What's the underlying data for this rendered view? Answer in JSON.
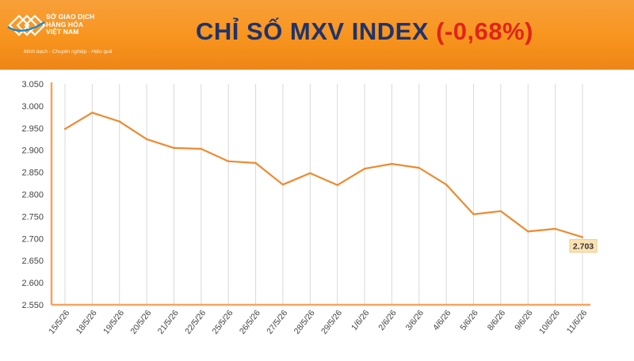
{
  "header": {
    "org_line1": "SỞ GIAO DỊCH",
    "org_line2": "HÀNG HÓA",
    "org_line3": "VIỆT NAM",
    "tagline": "Minh bạch - Chuyên nghiệp - Hiệu quả",
    "title_main": "CHỈ SỐ MXV INDEX",
    "title_change": "(-0,68%)",
    "header_color": "#f7941d",
    "title_color": "#20336b",
    "change_color": "#e0241b"
  },
  "chart_data": {
    "type": "line",
    "categories": [
      "15/5/26",
      "18/5/26",
      "19/5/26",
      "20/5/26",
      "21/5/26",
      "22/5/26",
      "25/5/26",
      "26/5/26",
      "27/5/26",
      "28/5/26",
      "29/5/26",
      "1/6/26",
      "2/6/26",
      "3/6/26",
      "4/6/26",
      "5/6/26",
      "8/6/26",
      "9/6/26",
      "10/6/26",
      "11/6/26"
    ],
    "values": [
      2948,
      2985,
      2965,
      2925,
      2905,
      2903,
      2875,
      2871,
      2822,
      2848,
      2821,
      2858,
      2869,
      2860,
      2822,
      2755,
      2762,
      2716,
      2722,
      2703
    ],
    "ylim": [
      2550,
      3050
    ],
    "yticks": [
      "2.550",
      "2.600",
      "2.650",
      "2.700",
      "2.750",
      "2.800",
      "2.850",
      "2.900",
      "2.950",
      "3.000",
      "3.050"
    ],
    "ytick_values": [
      2550,
      2600,
      2650,
      2700,
      2750,
      2800,
      2850,
      2900,
      2950,
      3000,
      3050
    ],
    "last_label": "2.703",
    "line_color": "#ee8a2f",
    "grid": "vertical",
    "axis_color": "#f4a460"
  }
}
